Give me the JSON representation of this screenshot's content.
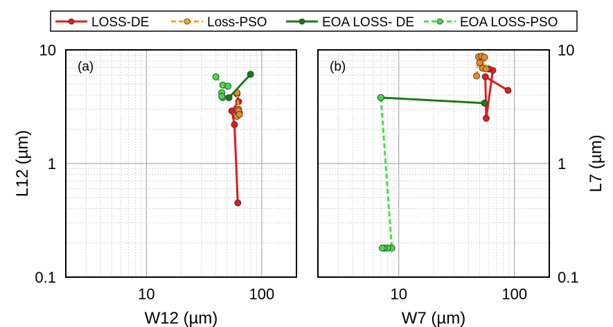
{
  "legend": {
    "items": [
      {
        "label": "LOSS-DE",
        "color": "#e41a1c",
        "dashed": false
      },
      {
        "label": "Loss-PSO",
        "color": "#f5a623",
        "dashed": true
      },
      {
        "label": "EOA LOSS- DE",
        "color": "#1a7a1a",
        "dashed": false
      },
      {
        "label": "EOA LOSS-PSO",
        "color": "#44e044",
        "dashed": true
      }
    ]
  },
  "chart_data": [
    {
      "type": "line",
      "panel_label": "(a)",
      "xlabel": "W12 (µm)",
      "ylabel": "L12 (µm)",
      "xscale": "log",
      "yscale": "log",
      "xlim": [
        2,
        200
      ],
      "ylim": [
        0.1,
        10
      ],
      "x_ticks": [
        "10",
        "100"
      ],
      "y_ticks": [
        "0.1",
        "1",
        "10"
      ],
      "grid": true,
      "series": [
        {
          "name": "LOSS-DE",
          "color": "#e41a1c",
          "dashed": false,
          "marker_fill": "#e41a1c",
          "points": [
            [
              62,
              0.45
            ],
            [
              58,
              2.2
            ],
            [
              55,
              2.9
            ],
            [
              63,
              3.5
            ],
            [
              61,
              4.1
            ]
          ]
        },
        {
          "name": "Loss-PSO",
          "color": "#f5a623",
          "dashed": true,
          "marker_fill": "#f08a24",
          "points": [
            [
              61,
              4.2
            ],
            [
              63,
              3.0
            ],
            [
              64,
              2.8
            ],
            [
              62,
              2.7
            ],
            [
              63,
              2.9
            ],
            [
              61,
              2.6
            ],
            [
              64,
              2.7
            ]
          ]
        },
        {
          "name": "EOA LOSS- DE",
          "color": "#1a7a1a",
          "dashed": false,
          "marker_fill": "#1a7a1a",
          "points": [
            [
              52,
              3.8
            ],
            [
              80,
              6.1
            ]
          ]
        },
        {
          "name": "EOA LOSS-PSO",
          "color": "#44e044",
          "dashed": true,
          "marker_fill": "#44dd44",
          "points": [
            [
              40,
              5.8
            ],
            [
              46,
              4.9
            ],
            [
              51,
              4.8
            ],
            [
              45,
              4.2
            ],
            [
              46,
              3.8
            ],
            [
              45,
              3.9
            ]
          ]
        }
      ]
    },
    {
      "type": "line",
      "panel_label": "(b)",
      "xlabel": "W7 (µm)",
      "ylabel": "L7 (µm)",
      "xscale": "log",
      "yscale": "log",
      "xlim": [
        2,
        200
      ],
      "ylim": [
        0.1,
        10
      ],
      "x_ticks": [
        "10",
        "100"
      ],
      "y_ticks": [
        "0.1",
        "1",
        "10"
      ],
      "grid": true,
      "series": [
        {
          "name": "LOSS-DE",
          "color": "#e41a1c",
          "dashed": false,
          "marker_fill": "#e41a1c",
          "points": [
            [
              88,
              4.4
            ],
            [
              56,
              5.8
            ],
            [
              57,
              2.5
            ],
            [
              65,
              6.6
            ],
            [
              60,
              6.8
            ]
          ]
        },
        {
          "name": "Loss-PSO",
          "color": "#f5a623",
          "dashed": true,
          "marker_fill": "#f08a24",
          "points": [
            [
              47,
              5.9
            ],
            [
              49,
              8.7
            ],
            [
              52,
              8.8
            ],
            [
              50,
              7.7
            ],
            [
              53,
              6.9
            ],
            [
              55,
              8.6
            ],
            [
              57,
              6.8
            ]
          ]
        },
        {
          "name": "EOA LOSS- DE",
          "color": "#1a7a1a",
          "dashed": false,
          "marker_fill": "#1a7a1a",
          "points": [
            [
              7.0,
              3.8
            ],
            [
              55,
              3.4
            ]
          ]
        },
        {
          "name": "EOA LOSS-PSO",
          "color": "#44e044",
          "dashed": true,
          "marker_fill": "#44dd44",
          "points": [
            [
              7.0,
              3.8
            ],
            [
              8.7,
              0.18
            ],
            [
              8.0,
              0.18
            ],
            [
              7.5,
              0.18
            ],
            [
              7.2,
              0.18
            ]
          ]
        }
      ]
    }
  ]
}
